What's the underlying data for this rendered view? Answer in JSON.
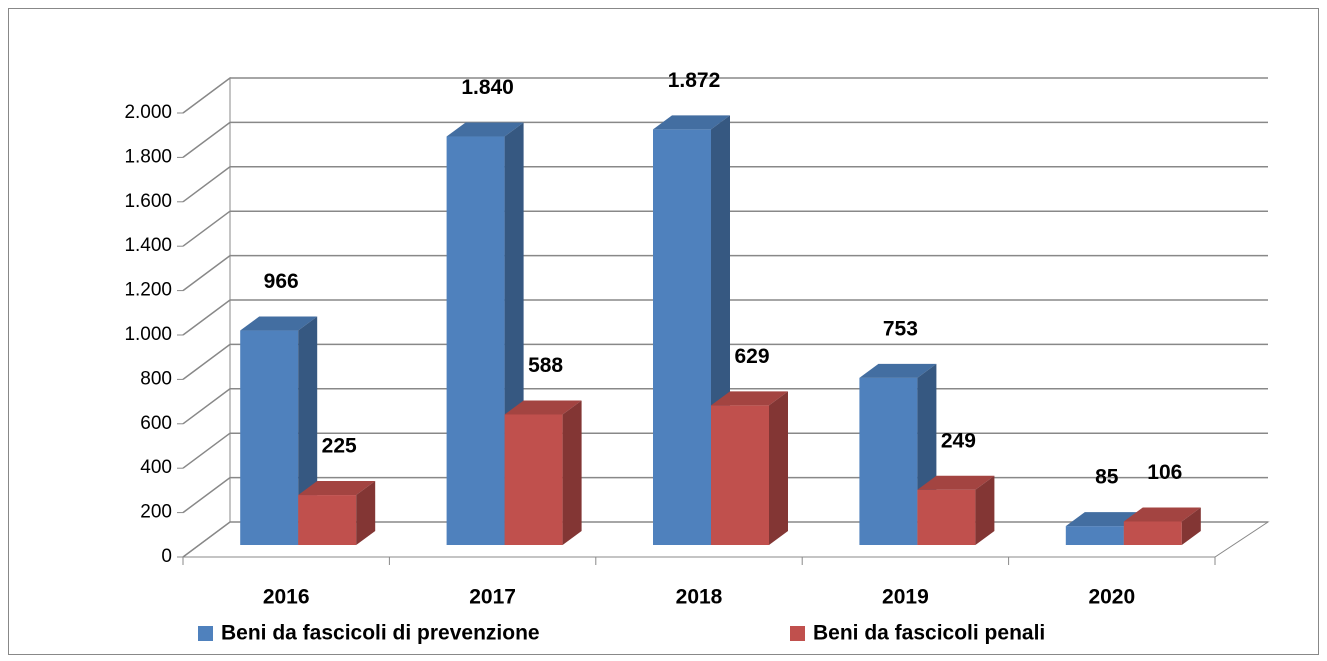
{
  "chart_data": {
    "type": "bar3d",
    "categories": [
      "2016",
      "2017",
      "2018",
      "2019",
      "2020"
    ],
    "series": [
      {
        "name": "Beni da fascicoli di prevenzione",
        "color": "#4f81bd",
        "values": [
          966,
          1840,
          1872,
          753,
          85
        ],
        "value_labels": [
          "966",
          "1.840",
          "1.872",
          "753",
          "85"
        ]
      },
      {
        "name": "Beni da fascicoli penali",
        "color": "#c0504d",
        "values": [
          225,
          588,
          629,
          249,
          106
        ]
      }
    ],
    "ylim": [
      0,
      2000
    ],
    "yticks": [
      0,
      200,
      400,
      600,
      800,
      {
        "value": 1000,
        "label": "1.000"
      },
      {
        "value": 1200,
        "label": "1.200"
      },
      {
        "value": 1400,
        "label": "1.400"
      },
      {
        "value": 1600,
        "label": "1.600"
      },
      {
        "value": 1800,
        "label": "1.800"
      },
      {
        "value": 2000,
        "label": "2.000"
      }
    ],
    "grid": true,
    "legend": "bottom"
  }
}
